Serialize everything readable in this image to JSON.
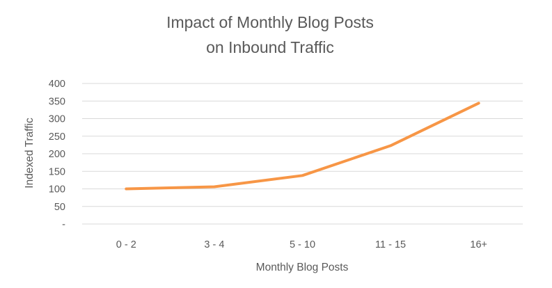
{
  "chart_data": {
    "type": "line",
    "title": [
      "Impact of Monthly Blog Posts",
      "on Inbound Traffic"
    ],
    "xlabel": "Monthly Blog Posts",
    "ylabel": "Indexed Traffic",
    "categories": [
      "0 - 2",
      "3 - 4",
      "5 - 10",
      "11 - 15",
      "16+"
    ],
    "series": [
      {
        "values": [
          100,
          106,
          138,
          223,
          344
        ]
      }
    ],
    "ylim": [
      0,
      400
    ],
    "yticks": [
      0,
      50,
      100,
      150,
      200,
      250,
      300,
      350,
      400
    ],
    "ytick_labels": [
      "-",
      "50",
      "100",
      "150",
      "200",
      "250",
      "300",
      "350",
      "400"
    ],
    "grid": true,
    "legend": "none",
    "colors": {
      "series": "#f79646",
      "grid": "#d9d9d9",
      "text": "#595959"
    }
  }
}
